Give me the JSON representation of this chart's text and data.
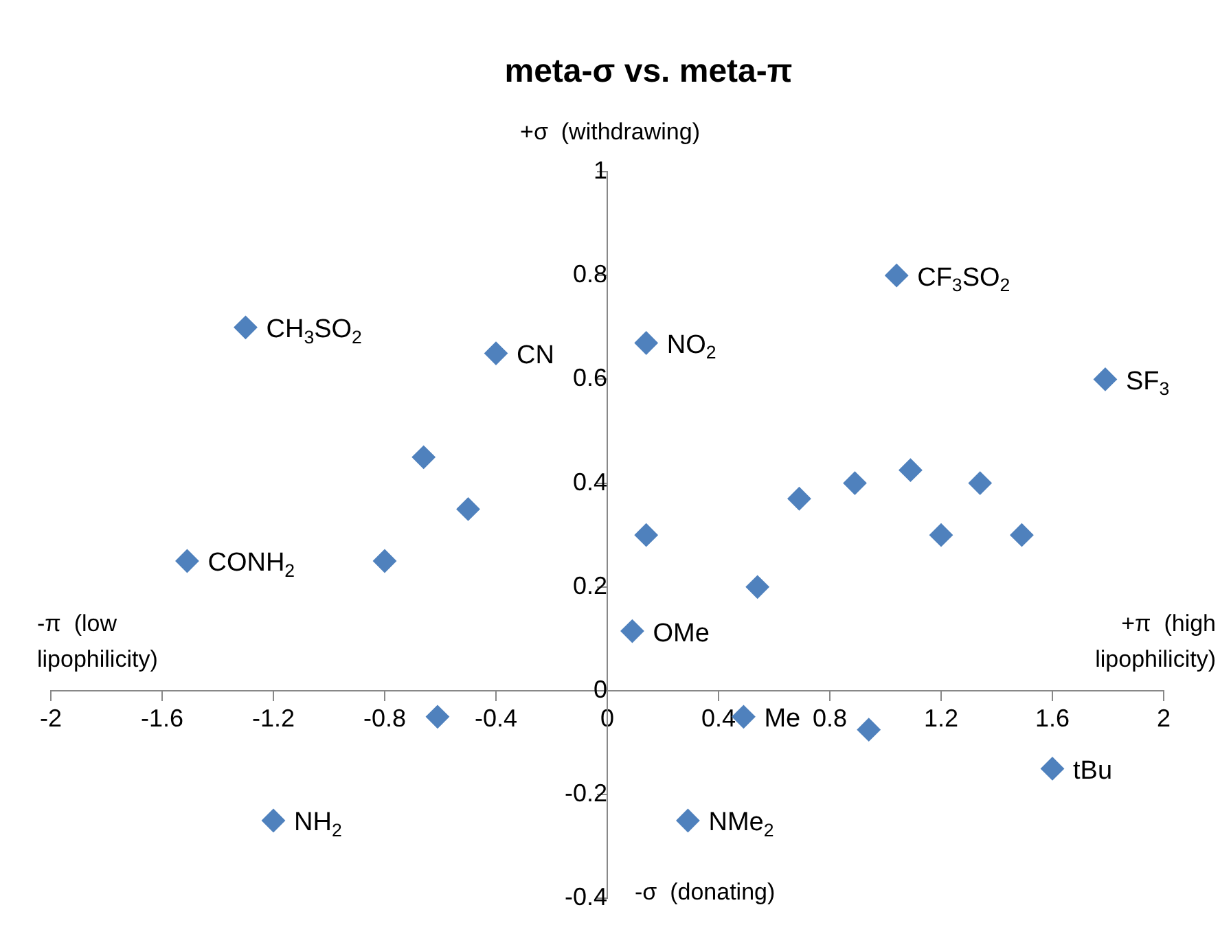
{
  "chart_data": {
    "type": "scatter",
    "title": "meta-σ vs. meta-π",
    "marker": "diamond",
    "grid": false,
    "legend": false,
    "xlim": [
      -2,
      2
    ],
    "xticks": [
      -2,
      -1.6,
      -1.2,
      -0.8,
      -0.4,
      0,
      0.4,
      0.8,
      1.2,
      1.6,
      2
    ],
    "ylim": [
      -0.4,
      1
    ],
    "yticks": [
      -0.4,
      -0.2,
      0,
      0.2,
      0.4,
      0.6,
      0.8,
      1
    ],
    "series": [
      {
        "color": "#4f81bd",
        "x": [
          -1.3,
          -0.4,
          0.14,
          1.04,
          1.79,
          -0.66,
          -0.5,
          -1.51,
          -0.8,
          0.14,
          0.69,
          0.89,
          1.09,
          1.34,
          1.2,
          1.49,
          0.54,
          0.09,
          -0.61,
          0.49,
          0.94,
          1.6,
          -1.2,
          0.29
        ],
        "values": [
          0.7,
          0.65,
          0.67,
          0.8,
          0.6,
          0.45,
          0.35,
          0.25,
          0.25,
          0.3,
          0.37,
          0.4,
          0.425,
          0.4,
          0.3,
          0.3,
          0.2,
          0.115,
          -0.05,
          -0.05,
          -0.075,
          -0.15,
          -0.25,
          -0.25
        ]
      }
    ],
    "annotations": [
      "+σ  (withdrawing)",
      "-σ  (donating)",
      "-π  (low lipophilicity)",
      "+π  (high lipophilicity)",
      {
        "text": "CH$_{3}$SO$_{2}$",
        "x": -1.3,
        "y": 0.7
      },
      {
        "text": "CN",
        "x": -0.4,
        "y": 0.65
      },
      {
        "text": "NO$_{2}$",
        "x": 0.14,
        "y": 0.67
      },
      {
        "text": "CF$_{3}$SO$_{2}$",
        "x": 1.04,
        "y": 0.8
      },
      {
        "text": "SF$_{3}$",
        "x": 1.79,
        "y": 0.6
      },
      {
        "text": "CONH$_{2}$",
        "x": -1.51,
        "y": 0.25
      },
      {
        "text": "OMe",
        "x": 0.09,
        "y": 0.115
      },
      {
        "text": "Me",
        "x": 0.49,
        "y": -0.05
      },
      {
        "text": "tBu",
        "x": 1.6,
        "y": -0.15
      },
      {
        "text": "NH$_{2}$",
        "x": -1.2,
        "y": -0.25
      },
      {
        "text": "NMe$_{2}$",
        "x": 0.29,
        "y": -0.25
      }
    ]
  }
}
